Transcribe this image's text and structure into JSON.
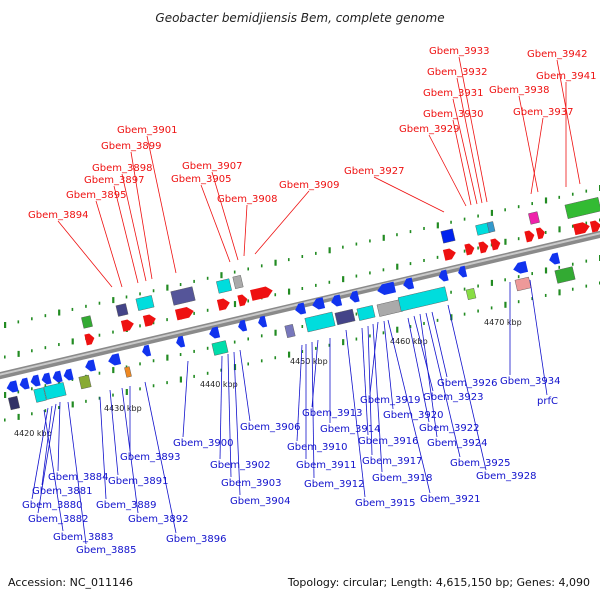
{
  "title": "Geobacter bemidjiensis Bem, complete genome",
  "footer": {
    "accession": "Accession: NC_011146",
    "summary": "Topology: circular; Length: 4,615,150 bp; Genes: 4,090"
  },
  "colors": {
    "top_label": "#ee1111",
    "bottom_label": "#1111cc",
    "backbone": "#999999",
    "tick": "#228b22"
  },
  "tick_labels": [
    "4420 kbp",
    "4430 kbp",
    "4440 kbp",
    "4450 kbp",
    "4460 kbp",
    "4470 kbp"
  ],
  "top_labels": [
    "Gbem_3894",
    "Gbem_3895",
    "Gbem_3897",
    "Gbem_3898",
    "Gbem_3899",
    "Gbem_3901",
    "Gbem_3905",
    "Gbem_3907",
    "Gbem_3908",
    "Gbem_3909",
    "Gbem_3927",
    "Gbem_3929",
    "Gbem_3930",
    "Gbem_3931",
    "Gbem_3932",
    "Gbem_3933",
    "Gbem_3937",
    "Gbem_3938",
    "Gbem_3941",
    "Gbem_3942"
  ],
  "bottom_labels": [
    "Gbem_3880",
    "Gbem_3881",
    "Gbem_3882",
    "Gbem_3883",
    "Gbem_3884",
    "Gbem_3885",
    "Gbem_3889",
    "Gbem_3891",
    "Gbem_3892",
    "Gbem_3893",
    "Gbem_3896",
    "Gbem_3900",
    "Gbem_3902",
    "Gbem_3903",
    "Gbem_3904",
    "Gbem_3906",
    "Gbem_3910",
    "Gbem_3911",
    "Gbem_3912",
    "Gbem_3913",
    "Gbem_3914",
    "Gbem_3915",
    "Gbem_3916",
    "Gbem_3917",
    "Gbem_3918",
    "Gbem_3919",
    "Gbem_3920",
    "Gbem_3921",
    "Gbem_3922",
    "Gbem_3923",
    "Gbem_3924",
    "Gbem_3925",
    "Gbem_3926",
    "Gbem_3928",
    "Gbem_3934",
    "prfC"
  ]
}
